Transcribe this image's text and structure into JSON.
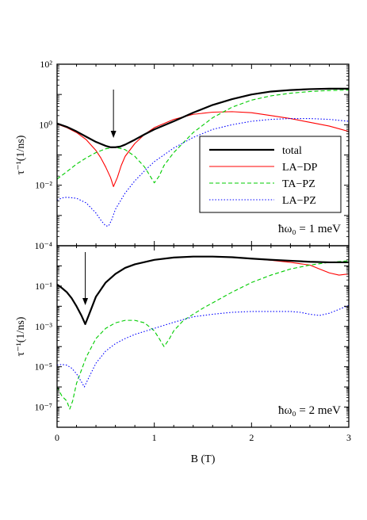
{
  "chart_data": [
    {
      "type": "line",
      "panel": "top",
      "xlabel": "",
      "ylabel": "τ⁻¹(1/ns)",
      "xlim": [
        0,
        3
      ],
      "ylim": [
        0.0001,
        100
      ],
      "yscale": "log",
      "y_ticks": [
        "10⁻⁴",
        "10⁻²",
        "10⁰",
        "10²"
      ],
      "annotation": "ħω₀ = 1 meV",
      "arrow_at_x": 0.58,
      "legend_position": "center-right",
      "series": [
        {
          "name": "total",
          "color": "#000000",
          "dash": "solid",
          "x": [
            0,
            0.1,
            0.2,
            0.3,
            0.4,
            0.5,
            0.55,
            0.6,
            0.65,
            0.7,
            0.8,
            0.9,
            1.0,
            1.2,
            1.4,
            1.6,
            1.8,
            2.0,
            2.2,
            2.4,
            2.6,
            2.8,
            3.0
          ],
          "y": [
            1.1,
            0.85,
            0.6,
            0.4,
            0.27,
            0.2,
            0.18,
            0.18,
            0.19,
            0.22,
            0.32,
            0.48,
            0.7,
            1.3,
            2.5,
            4.5,
            7,
            10,
            12.5,
            14,
            15,
            15.5,
            15.5
          ]
        },
        {
          "name": "LA−DP",
          "color": "#ff0000",
          "dash": "solid",
          "x": [
            0,
            0.1,
            0.2,
            0.3,
            0.4,
            0.45,
            0.5,
            0.55,
            0.58,
            0.62,
            0.66,
            0.7,
            0.8,
            0.9,
            1.0,
            1.2,
            1.4,
            1.6,
            1.8,
            2.0,
            2.2,
            2.4,
            2.6,
            2.8,
            3.0
          ],
          "y": [
            1.05,
            0.8,
            0.55,
            0.32,
            0.14,
            0.08,
            0.04,
            0.018,
            0.009,
            0.018,
            0.045,
            0.09,
            0.24,
            0.48,
            0.8,
            1.5,
            2.2,
            2.6,
            2.7,
            2.5,
            2.0,
            1.6,
            1.2,
            0.9,
            0.6
          ]
        },
        {
          "name": "TA−PZ",
          "color": "#00cc00",
          "dash": "dashed",
          "x": [
            0,
            0.1,
            0.2,
            0.3,
            0.4,
            0.5,
            0.6,
            0.7,
            0.8,
            0.9,
            0.95,
            1.0,
            1.05,
            1.1,
            1.2,
            1.4,
            1.6,
            1.8,
            2.0,
            2.2,
            2.4,
            2.6,
            2.8,
            3.0
          ],
          "y": [
            0.016,
            0.028,
            0.05,
            0.08,
            0.12,
            0.16,
            0.18,
            0.15,
            0.09,
            0.04,
            0.022,
            0.012,
            0.02,
            0.045,
            0.12,
            0.55,
            1.7,
            3.8,
            6.5,
            9,
            11,
            12.5,
            13.5,
            14
          ]
        },
        {
          "name": "LA−PZ",
          "color": "#0000ff",
          "dash": "dotted",
          "x": [
            0,
            0.05,
            0.1,
            0.2,
            0.3,
            0.4,
            0.45,
            0.5,
            0.53,
            0.56,
            0.6,
            0.7,
            0.8,
            0.9,
            1.0,
            1.2,
            1.4,
            1.6,
            1.8,
            2.0,
            2.2,
            2.4,
            2.6,
            2.8,
            3.0
          ],
          "y": [
            0.0032,
            0.0038,
            0.004,
            0.0037,
            0.0026,
            0.0012,
            0.0007,
            0.00045,
            0.00045,
            0.0007,
            0.0016,
            0.0055,
            0.014,
            0.03,
            0.06,
            0.17,
            0.38,
            0.7,
            1.0,
            1.3,
            1.5,
            1.6,
            1.6,
            1.5,
            1.3
          ]
        }
      ]
    },
    {
      "type": "line",
      "panel": "bottom",
      "xlabel": "B (T)",
      "ylabel": "τ⁻¹(1/ns)",
      "xlim": [
        0,
        3
      ],
      "ylim": [
        1e-08,
        10
      ],
      "yscale": "log",
      "y_ticks": [
        "10⁻⁷",
        "10⁻⁵",
        "10⁻³",
        "10⁻¹"
      ],
      "x_ticks": [
        "0",
        "1",
        "2",
        "3"
      ],
      "annotation": "ħω₀ = 2 meV",
      "arrow_at_x": 0.29,
      "series": [
        {
          "name": "total",
          "color": "#000000",
          "dash": "solid",
          "x": [
            0,
            0.05,
            0.1,
            0.15,
            0.2,
            0.25,
            0.29,
            0.33,
            0.4,
            0.5,
            0.6,
            0.7,
            0.8,
            1.0,
            1.2,
            1.4,
            1.6,
            1.8,
            2.0,
            2.2,
            2.4,
            2.6,
            2.8,
            3.0
          ],
          "y": [
            0.12,
            0.08,
            0.05,
            0.025,
            0.01,
            0.0035,
            0.0013,
            0.004,
            0.03,
            0.15,
            0.4,
            0.8,
            1.2,
            2.0,
            2.6,
            2.9,
            2.9,
            2.7,
            2.3,
            2.0,
            1.8,
            1.6,
            1.5,
            1.5
          ]
        },
        {
          "name": "LA−DP",
          "color": "#ff0000",
          "dash": "solid",
          "x": [
            0,
            0.05,
            0.1,
            0.15,
            0.2,
            0.25,
            0.29,
            0.33,
            0.4,
            0.5,
            0.6,
            0.7,
            0.8,
            1.0,
            1.2,
            1.4,
            1.6,
            1.8,
            2.0,
            2.2,
            2.4,
            2.6,
            2.7,
            2.8,
            2.9,
            3.0
          ],
          "y": [
            0.12,
            0.08,
            0.05,
            0.025,
            0.01,
            0.0035,
            0.0013,
            0.004,
            0.03,
            0.15,
            0.4,
            0.8,
            1.2,
            2.0,
            2.6,
            2.9,
            2.9,
            2.7,
            2.3,
            1.9,
            1.5,
            1.1,
            0.7,
            0.45,
            0.35,
            0.4
          ]
        },
        {
          "name": "TA−PZ",
          "color": "#00cc00",
          "dash": "dashed",
          "x": [
            0,
            0.05,
            0.1,
            0.13,
            0.16,
            0.2,
            0.3,
            0.4,
            0.5,
            0.6,
            0.7,
            0.8,
            0.9,
            1.0,
            1.05,
            1.1,
            1.15,
            1.2,
            1.3,
            1.5,
            1.8,
            2.0,
            2.2,
            2.4,
            2.6,
            2.8,
            3.0
          ],
          "y": [
            1e-06,
            3.5e-07,
            2e-07,
            8e-08,
            2e-07,
            1.5e-06,
            3e-05,
            0.00025,
            0.0008,
            0.0015,
            0.002,
            0.002,
            0.0015,
            0.0006,
            0.00025,
            0.0001,
            0.00022,
            0.0006,
            0.002,
            0.008,
            0.05,
            0.15,
            0.35,
            0.7,
            1.1,
            1.5,
            1.8
          ]
        },
        {
          "name": "LA−PZ",
          "color": "#0000ff",
          "dash": "dotted",
          "x": [
            0,
            0.05,
            0.1,
            0.15,
            0.2,
            0.25,
            0.28,
            0.32,
            0.4,
            0.5,
            0.6,
            0.7,
            0.8,
            1.0,
            1.2,
            1.4,
            1.6,
            1.8,
            2.0,
            2.2,
            2.4,
            2.5,
            2.6,
            2.7,
            2.8,
            2.9,
            3.0
          ],
          "y": [
            1.2e-05,
            1.3e-05,
            1.2e-05,
            8.5e-06,
            4.5e-06,
            1.8e-06,
            1e-06,
            2.5e-06,
            1.5e-05,
            6e-05,
            0.00014,
            0.00025,
            0.0004,
            0.0008,
            0.0016,
            0.003,
            0.004,
            0.005,
            0.0055,
            0.0055,
            0.0055,
            0.005,
            0.004,
            0.0035,
            0.0045,
            0.007,
            0.011
          ]
        }
      ]
    }
  ]
}
